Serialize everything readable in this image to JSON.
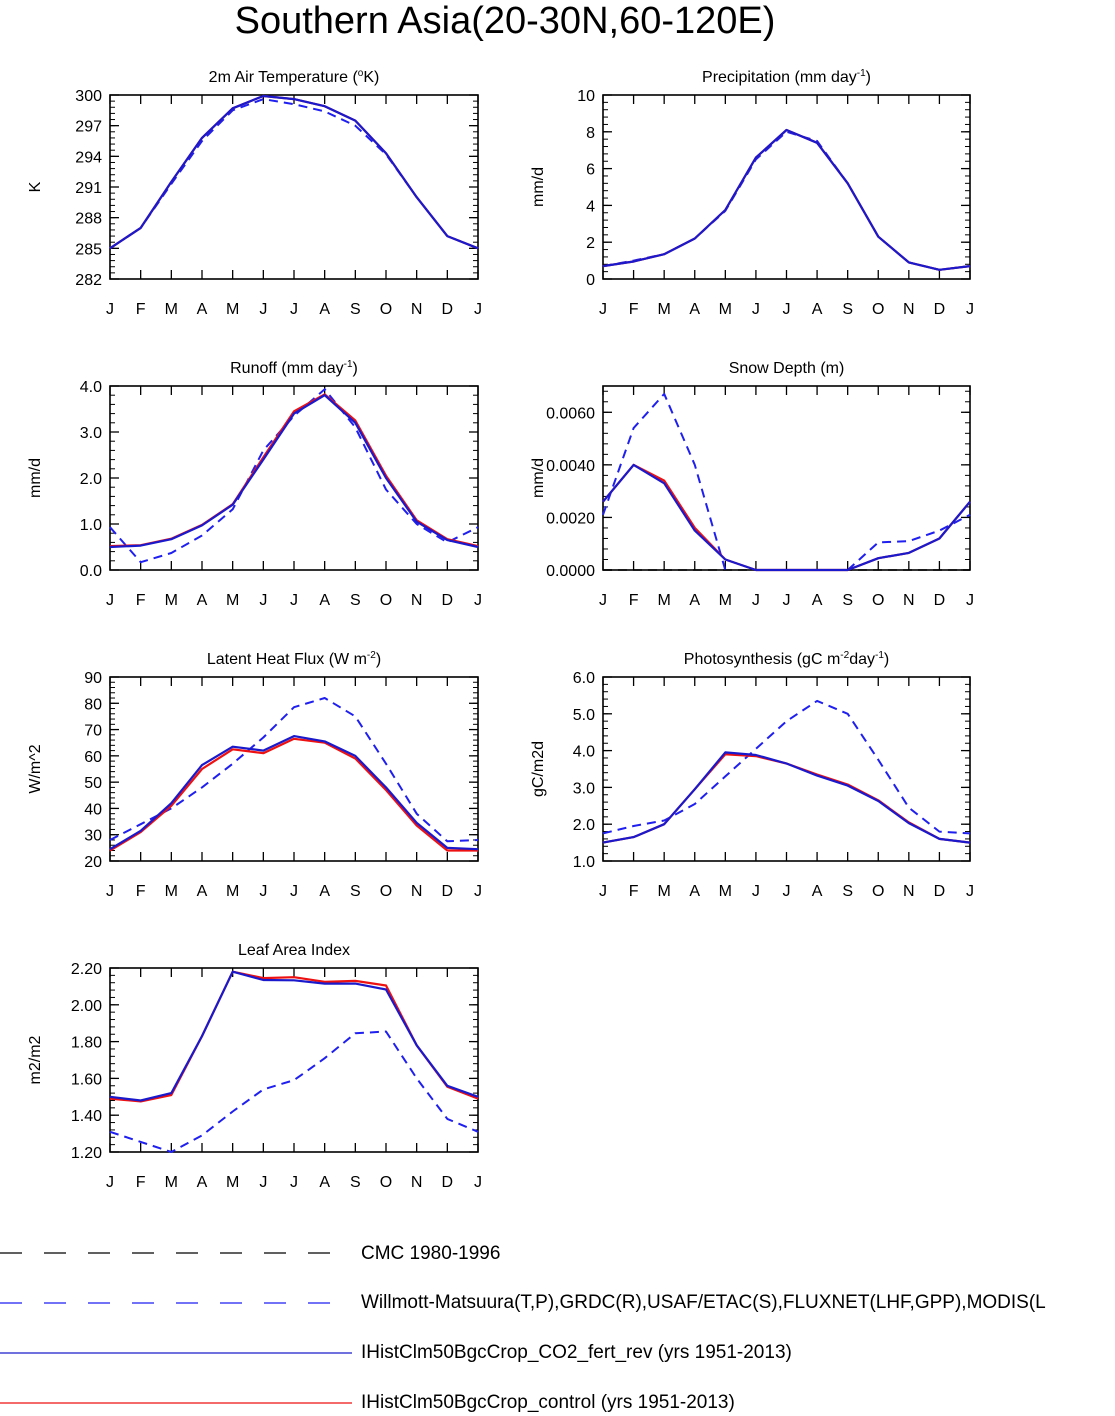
{
  "title": "Southern Asia(20-30N,60-120E)",
  "months": [
    "J",
    "F",
    "M",
    "A",
    "M",
    "J",
    "J",
    "A",
    "S",
    "O",
    "N",
    "D",
    "J"
  ],
  "colors": {
    "cmc": "#000000",
    "obs": "#1f1ff0",
    "co2": "#1a1acc",
    "control": "#ee1111"
  },
  "legend": [
    {
      "key": "cmc",
      "label": "CMC 1980-1996",
      "style": "dashed"
    },
    {
      "key": "obs",
      "label": "Willmott-Matsuura(T,P),GRDC(R),USAF/ETAC(S),FLUXNET(LHF,GPP),MODIS(L",
      "style": "dashed"
    },
    {
      "key": "co2",
      "label": "IHistClm50BgcCrop_CO2_fert_rev (yrs 1951-2013)",
      "style": "solid"
    },
    {
      "key": "control",
      "label": "IHistClm50BgcCrop_control (yrs 1951-2013)",
      "style": "solid"
    }
  ],
  "chart_data": [
    {
      "type": "line",
      "title_pre": "2m Air Temperature (",
      "title_sup": "o",
      "title_post": "K)",
      "ylabel": "K",
      "ylim": [
        282,
        300
      ],
      "yticks": [
        "282",
        "285",
        "288",
        "291",
        "294",
        "297",
        "300"
      ],
      "x": [
        "J",
        "F",
        "M",
        "A",
        "M",
        "J",
        "J",
        "A",
        "S",
        "O",
        "N",
        "D",
        "J"
      ],
      "series": [
        {
          "key": "obs",
          "values": [
            285.0,
            287.0,
            291.3,
            295.5,
            298.5,
            299.6,
            299.1,
            298.4,
            297.0,
            294.2,
            290.0,
            286.2,
            285.0
          ]
        },
        {
          "key": "control",
          "values": [
            285.0,
            287.0,
            291.5,
            295.8,
            298.7,
            299.9,
            299.6,
            298.9,
            297.5,
            294.3,
            290.0,
            286.2,
            285.0
          ]
        },
        {
          "key": "co2",
          "values": [
            285.0,
            287.0,
            291.5,
            295.8,
            298.7,
            299.9,
            299.6,
            298.9,
            297.5,
            294.3,
            290.0,
            286.2,
            285.0
          ]
        }
      ]
    },
    {
      "type": "line",
      "title_pre": "Precipitation (mm day",
      "title_sup": "-1",
      "title_post": ")",
      "ylabel": "mm/d",
      "ylim": [
        0,
        10
      ],
      "yticks": [
        "0",
        "2",
        "4",
        "6",
        "8",
        "10"
      ],
      "x": [
        "J",
        "F",
        "M",
        "A",
        "M",
        "J",
        "J",
        "A",
        "S",
        "O",
        "N",
        "D",
        "J"
      ],
      "series": [
        {
          "key": "obs",
          "values": [
            0.7,
            1.0,
            1.35,
            2.2,
            3.7,
            6.5,
            8.0,
            7.5,
            5.2,
            2.3,
            0.9,
            0.5,
            0.7
          ]
        },
        {
          "key": "control",
          "values": [
            0.7,
            0.95,
            1.35,
            2.2,
            3.75,
            6.6,
            8.1,
            7.4,
            5.2,
            2.3,
            0.9,
            0.5,
            0.7
          ]
        },
        {
          "key": "co2",
          "values": [
            0.7,
            0.95,
            1.35,
            2.2,
            3.75,
            6.6,
            8.1,
            7.4,
            5.2,
            2.3,
            0.9,
            0.5,
            0.7
          ]
        }
      ]
    },
    {
      "type": "line",
      "title_pre": "Runoff (mm day",
      "title_sup": "-1",
      "title_post": ")",
      "ylabel": "mm/d",
      "ylim": [
        0,
        4
      ],
      "yticks": [
        "0.0",
        "1.0",
        "2.0",
        "3.0",
        "4.0"
      ],
      "x": [
        "J",
        "F",
        "M",
        "A",
        "M",
        "J",
        "J",
        "A",
        "S",
        "O",
        "N",
        "D",
        "J"
      ],
      "series": [
        {
          "key": "obs",
          "values": [
            0.93,
            0.17,
            0.37,
            0.75,
            1.32,
            2.6,
            3.35,
            3.93,
            3.1,
            1.75,
            1.0,
            0.6,
            0.93
          ]
        },
        {
          "key": "control",
          "values": [
            0.52,
            0.54,
            0.68,
            0.98,
            1.43,
            2.45,
            3.45,
            3.82,
            3.25,
            2.05,
            1.08,
            0.67,
            0.52
          ]
        },
        {
          "key": "co2",
          "values": [
            0.5,
            0.53,
            0.67,
            0.97,
            1.42,
            2.4,
            3.4,
            3.8,
            3.2,
            2.0,
            1.05,
            0.65,
            0.5
          ]
        }
      ]
    },
    {
      "type": "line",
      "title_pre": "Snow Depth (m)",
      "title_sup": "",
      "title_post": "",
      "ylabel": "mm/d",
      "ylim": [
        0,
        0.007
      ],
      "yticks": [
        "0.0000",
        "0.0020",
        "0.0040",
        "0.0060"
      ],
      "ytickvals": [
        0,
        0.002,
        0.004,
        0.006
      ],
      "x": [
        "J",
        "F",
        "M",
        "A",
        "M",
        "J",
        "J",
        "A",
        "S",
        "O",
        "N",
        "D",
        "J"
      ],
      "series": [
        {
          "key": "cmc",
          "values": [
            0,
            0,
            0,
            0,
            0,
            0,
            0,
            0,
            0,
            0,
            0,
            0,
            0
          ]
        },
        {
          "key": "obs",
          "values": [
            0.0021,
            0.0054,
            0.0067,
            0.004,
            0,
            null,
            null,
            null,
            0,
            0.00105,
            0.0011,
            0.0015,
            0.0021
          ]
        },
        {
          "key": "control",
          "values": [
            0.0026,
            0.004,
            0.0034,
            0.0016,
            0.0004,
            0,
            0,
            0,
            0,
            0.00045,
            0.00065,
            0.0012,
            0.0026
          ]
        },
        {
          "key": "co2",
          "values": [
            0.0026,
            0.004,
            0.0033,
            0.0015,
            0.0004,
            0,
            0,
            0,
            0,
            0.00045,
            0.00065,
            0.0012,
            0.0026
          ]
        }
      ]
    },
    {
      "type": "line",
      "title_pre": "Latent Heat Flux (W m",
      "title_sup": "-2",
      "title_post": ")",
      "ylabel": "W/m^2",
      "ylim": [
        20,
        90
      ],
      "yticks": [
        "20",
        "30",
        "40",
        "50",
        "60",
        "70",
        "80",
        "90"
      ],
      "x": [
        "J",
        "F",
        "M",
        "A",
        "M",
        "J",
        "J",
        "A",
        "S",
        "O",
        "N",
        "D",
        "J"
      ],
      "series": [
        {
          "key": "obs",
          "values": [
            28.0,
            34.0,
            40.0,
            48.0,
            57.0,
            67.0,
            78.5,
            82.0,
            75.0,
            57.0,
            38.0,
            27.5,
            28.0
          ]
        },
        {
          "key": "control",
          "values": [
            24.0,
            31.0,
            41.0,
            55.0,
            62.5,
            61.0,
            66.5,
            65.0,
            59.0,
            47.0,
            33.5,
            24.0,
            24.0
          ]
        },
        {
          "key": "co2",
          "values": [
            24.5,
            31.5,
            42.0,
            56.5,
            63.5,
            62.0,
            67.5,
            65.5,
            60.0,
            48.0,
            34.5,
            25.0,
            24.5
          ]
        }
      ]
    },
    {
      "type": "line",
      "title_pre": "Photosynthesis (gC m",
      "title_sup": "-2",
      "title_post": "day",
      "title_sup2": "-1",
      "title_post2": ")",
      "ylabel": "gC/m2d",
      "ylim": [
        1,
        6
      ],
      "yticks": [
        "1.0",
        "2.0",
        "3.0",
        "4.0",
        "5.0",
        "6.0"
      ],
      "x": [
        "J",
        "F",
        "M",
        "A",
        "M",
        "J",
        "J",
        "A",
        "S",
        "O",
        "N",
        "D",
        "J"
      ],
      "series": [
        {
          "key": "obs",
          "values": [
            1.75,
            1.95,
            2.1,
            2.55,
            3.3,
            4.05,
            4.8,
            5.35,
            5.0,
            3.75,
            2.45,
            1.8,
            1.75
          ]
        },
        {
          "key": "control",
          "values": [
            1.5,
            1.65,
            2.0,
            2.95,
            3.9,
            3.85,
            3.65,
            3.35,
            3.08,
            2.65,
            2.05,
            1.6,
            1.5
          ]
        },
        {
          "key": "co2",
          "values": [
            1.5,
            1.65,
            2.0,
            2.95,
            3.95,
            3.88,
            3.65,
            3.32,
            3.05,
            2.63,
            2.03,
            1.6,
            1.5
          ]
        }
      ]
    },
    {
      "type": "line",
      "title_pre": "Leaf Area Index",
      "title_sup": "",
      "title_post": "",
      "ylabel": "m2/m2",
      "ylim": [
        1.2,
        2.2
      ],
      "yticks": [
        "1.20",
        "1.40",
        "1.60",
        "1.80",
        "2.00",
        "2.20"
      ],
      "ytickvals": [
        1.2,
        1.4,
        1.6,
        1.8,
        2.0,
        2.2
      ],
      "x": [
        "J",
        "F",
        "M",
        "A",
        "M",
        "J",
        "J",
        "A",
        "S",
        "O",
        "N",
        "D",
        "J"
      ],
      "series": [
        {
          "key": "obs",
          "values": [
            1.31,
            1.255,
            1.2,
            1.29,
            1.42,
            1.54,
            1.59,
            1.71,
            1.845,
            1.855,
            1.6,
            1.38,
            1.31
          ]
        },
        {
          "key": "control",
          "values": [
            1.49,
            1.475,
            1.51,
            1.83,
            2.18,
            2.145,
            2.15,
            2.125,
            2.13,
            2.105,
            1.78,
            1.555,
            1.49
          ]
        },
        {
          "key": "co2",
          "values": [
            1.5,
            1.48,
            1.52,
            1.83,
            2.18,
            2.135,
            2.133,
            2.115,
            2.115,
            2.083,
            1.78,
            1.56,
            1.5
          ]
        }
      ]
    }
  ]
}
